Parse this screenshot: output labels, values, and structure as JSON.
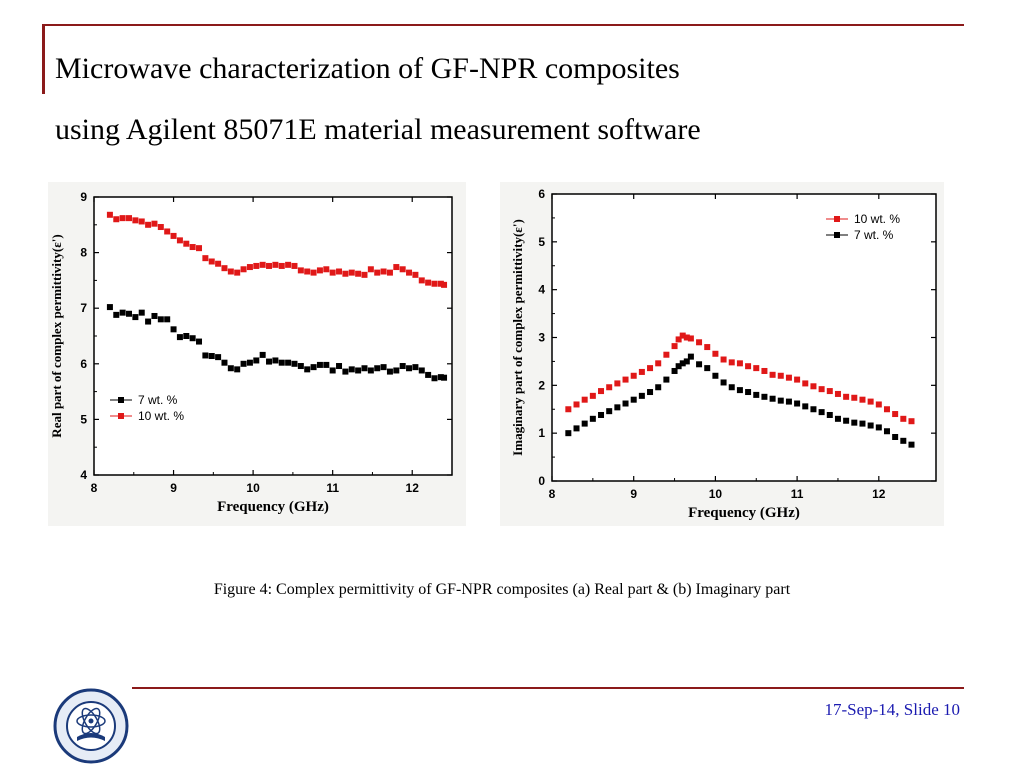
{
  "slide": {
    "title_line1": "Microwave characterization of GF-NPR composites",
    "title_line2": "using Agilent 85071E  material measurement software",
    "caption": "Figure 4: Complex permittivity of GF-NPR composites (a) Real part & (b) Imaginary part",
    "footer": "17-Sep-14, Slide 10",
    "logo_icon": "tezpur-university-seal-icon",
    "accent_color": "#8b1a1a",
    "footer_color": "#1a1ab0"
  },
  "chart_data": [
    {
      "type": "scatter",
      "title": "",
      "xlabel": "Frequency (GHz)",
      "ylabel": "Real part of complex permittivity(ε')",
      "xlim": [
        8,
        12.5
      ],
      "ylim": [
        4,
        9
      ],
      "xticks": [
        "8",
        "9",
        "10",
        "11",
        "12"
      ],
      "yticks": [
        "4",
        "5",
        "6",
        "7",
        "8",
        "9"
      ],
      "legend_position": "bottom-left",
      "series": [
        {
          "name": "7 wt. %",
          "color": "#000000",
          "x": [
            8.2,
            8.28,
            8.36,
            8.44,
            8.52,
            8.6,
            8.68,
            8.76,
            8.84,
            8.92,
            9.0,
            9.08,
            9.16,
            9.24,
            9.32,
            9.4,
            9.48,
            9.56,
            9.64,
            9.72,
            9.8,
            9.88,
            9.96,
            10.04,
            10.12,
            10.2,
            10.28,
            10.36,
            10.44,
            10.52,
            10.6,
            10.68,
            10.76,
            10.84,
            10.92,
            11.0,
            11.08,
            11.16,
            11.24,
            11.32,
            11.4,
            11.48,
            11.56,
            11.64,
            11.72,
            11.8,
            11.88,
            11.96,
            12.04,
            12.12,
            12.2,
            12.28,
            12.36,
            12.4
          ],
          "values": [
            7.02,
            6.88,
            6.92,
            6.9,
            6.84,
            6.92,
            6.76,
            6.86,
            6.8,
            6.8,
            6.62,
            6.48,
            6.5,
            6.46,
            6.4,
            6.15,
            6.14,
            6.12,
            6.02,
            5.92,
            5.9,
            6.0,
            6.02,
            6.06,
            6.16,
            6.04,
            6.06,
            6.02,
            6.02,
            6.0,
            5.96,
            5.9,
            5.94,
            5.98,
            5.98,
            5.88,
            5.96,
            5.86,
            5.9,
            5.88,
            5.92,
            5.88,
            5.92,
            5.94,
            5.86,
            5.88,
            5.96,
            5.92,
            5.94,
            5.88,
            5.8,
            5.74,
            5.76,
            5.75
          ]
        },
        {
          "name": "10 wt. %",
          "color": "#e01818",
          "x": [
            8.2,
            8.28,
            8.36,
            8.44,
            8.52,
            8.6,
            8.68,
            8.76,
            8.84,
            8.92,
            9.0,
            9.08,
            9.16,
            9.24,
            9.32,
            9.4,
            9.48,
            9.56,
            9.64,
            9.72,
            9.8,
            9.88,
            9.96,
            10.04,
            10.12,
            10.2,
            10.28,
            10.36,
            10.44,
            10.52,
            10.6,
            10.68,
            10.76,
            10.84,
            10.92,
            11.0,
            11.08,
            11.16,
            11.24,
            11.32,
            11.4,
            11.48,
            11.56,
            11.64,
            11.72,
            11.8,
            11.88,
            11.96,
            12.04,
            12.12,
            12.2,
            12.28,
            12.36,
            12.4
          ],
          "values": [
            8.68,
            8.6,
            8.62,
            8.62,
            8.58,
            8.56,
            8.5,
            8.52,
            8.46,
            8.38,
            8.3,
            8.22,
            8.16,
            8.1,
            8.08,
            7.9,
            7.84,
            7.8,
            7.72,
            7.66,
            7.64,
            7.7,
            7.74,
            7.76,
            7.78,
            7.76,
            7.78,
            7.76,
            7.78,
            7.76,
            7.68,
            7.66,
            7.64,
            7.68,
            7.7,
            7.64,
            7.66,
            7.62,
            7.64,
            7.62,
            7.6,
            7.7,
            7.64,
            7.66,
            7.64,
            7.74,
            7.7,
            7.64,
            7.6,
            7.5,
            7.46,
            7.44,
            7.44,
            7.42
          ]
        }
      ]
    },
    {
      "type": "scatter",
      "title": "",
      "xlabel": "Frequency (GHz)",
      "ylabel": "Imaginary part of complex permittivity(ε')",
      "xlim": [
        8,
        12.7
      ],
      "ylim": [
        0,
        6
      ],
      "xticks": [
        "8",
        "9",
        "10",
        "11",
        "12"
      ],
      "yticks": [
        "0",
        "1",
        "2",
        "3",
        "4",
        "5",
        "6"
      ],
      "legend_position": "top-right",
      "series": [
        {
          "name": "10 wt. %",
          "color": "#e01818",
          "x": [
            8.2,
            8.3,
            8.4,
            8.5,
            8.6,
            8.7,
            8.8,
            8.9,
            9.0,
            9.1,
            9.2,
            9.3,
            9.4,
            9.5,
            9.55,
            9.6,
            9.65,
            9.7,
            9.8,
            9.9,
            10.0,
            10.1,
            10.2,
            10.3,
            10.4,
            10.5,
            10.6,
            10.7,
            10.8,
            10.9,
            11.0,
            11.1,
            11.2,
            11.3,
            11.4,
            11.5,
            11.6,
            11.7,
            11.8,
            11.9,
            12.0,
            12.1,
            12.2,
            12.3,
            12.4
          ],
          "values": [
            1.5,
            1.6,
            1.7,
            1.78,
            1.88,
            1.96,
            2.04,
            2.12,
            2.2,
            2.28,
            2.36,
            2.46,
            2.64,
            2.82,
            2.96,
            3.04,
            3.0,
            2.98,
            2.9,
            2.8,
            2.66,
            2.54,
            2.48,
            2.46,
            2.4,
            2.36,
            2.3,
            2.22,
            2.2,
            2.16,
            2.12,
            2.04,
            1.98,
            1.92,
            1.88,
            1.82,
            1.76,
            1.74,
            1.7,
            1.66,
            1.6,
            1.5,
            1.4,
            1.3,
            1.25
          ]
        },
        {
          "name": "7 wt. %",
          "color": "#000000",
          "x": [
            8.2,
            8.3,
            8.4,
            8.5,
            8.6,
            8.7,
            8.8,
            8.9,
            9.0,
            9.1,
            9.2,
            9.3,
            9.4,
            9.5,
            9.55,
            9.6,
            9.65,
            9.7,
            9.8,
            9.9,
            10.0,
            10.1,
            10.2,
            10.3,
            10.4,
            10.5,
            10.6,
            10.7,
            10.8,
            10.9,
            11.0,
            11.1,
            11.2,
            11.3,
            11.4,
            11.5,
            11.6,
            11.7,
            11.8,
            11.9,
            12.0,
            12.1,
            12.2,
            12.3,
            12.4
          ],
          "values": [
            1.0,
            1.1,
            1.2,
            1.3,
            1.38,
            1.46,
            1.54,
            1.62,
            1.7,
            1.78,
            1.86,
            1.96,
            2.12,
            2.3,
            2.4,
            2.46,
            2.5,
            2.6,
            2.44,
            2.36,
            2.2,
            2.06,
            1.96,
            1.9,
            1.86,
            1.8,
            1.76,
            1.72,
            1.68,
            1.66,
            1.62,
            1.56,
            1.5,
            1.44,
            1.38,
            1.3,
            1.26,
            1.22,
            1.2,
            1.16,
            1.12,
            1.04,
            0.92,
            0.84,
            0.76
          ]
        }
      ]
    }
  ]
}
